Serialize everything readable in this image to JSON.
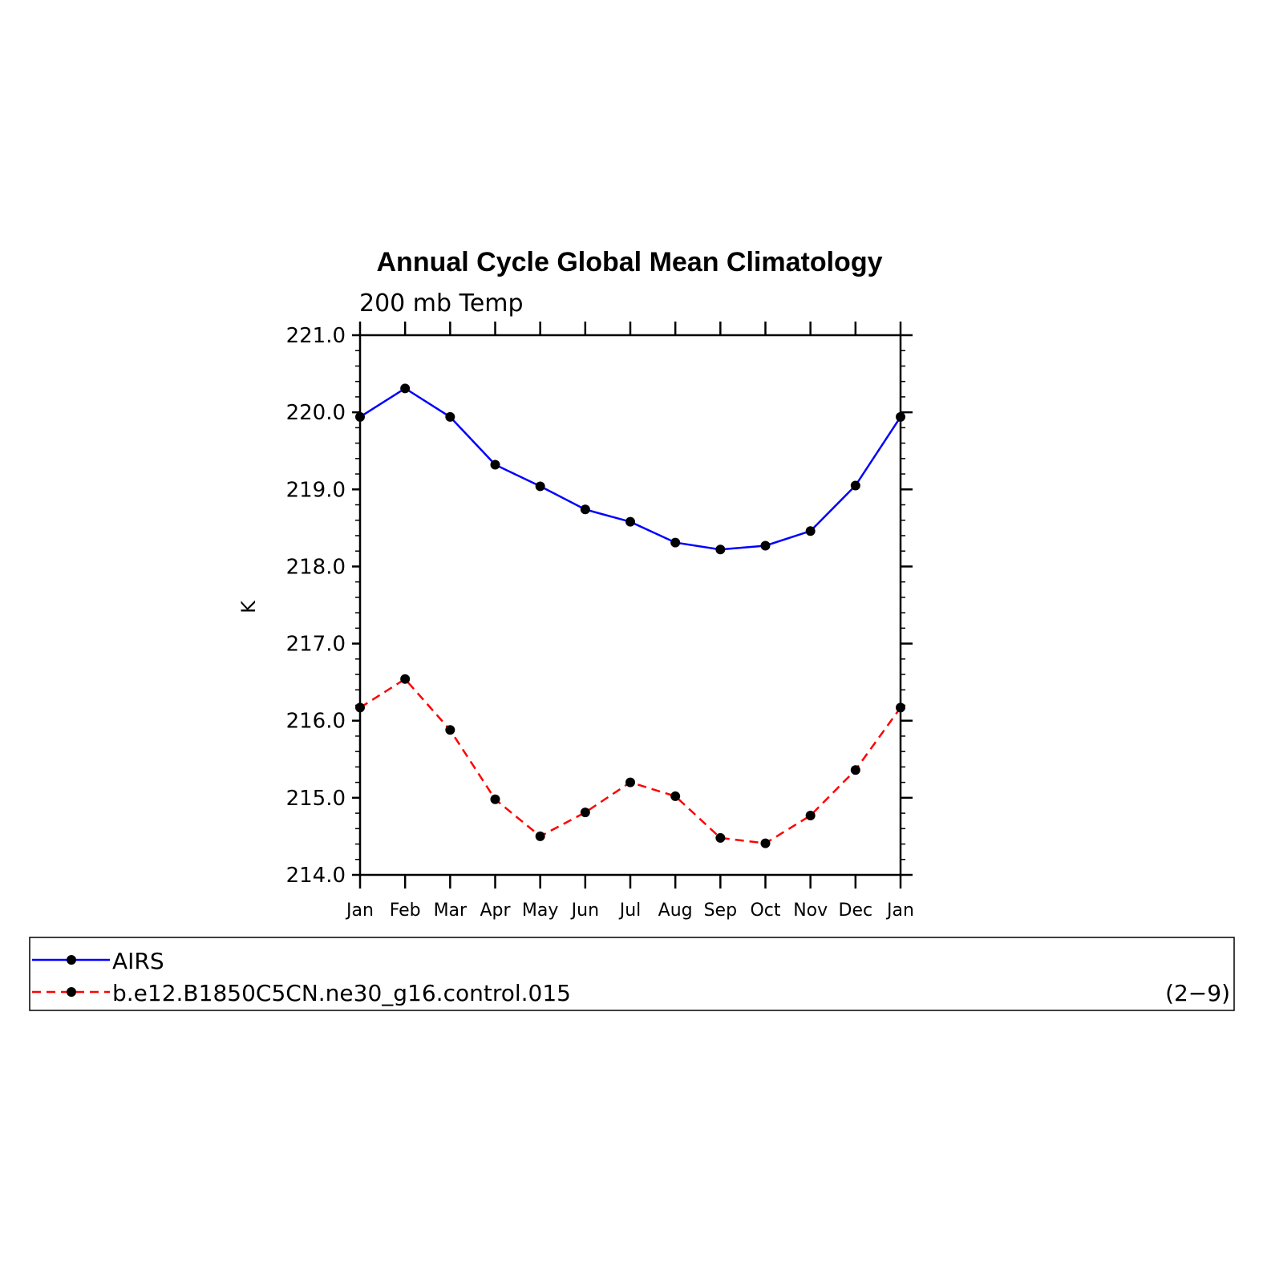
{
  "chart_data": {
    "type": "line",
    "title": "Annual Cycle Global Mean Climatology",
    "subtitle": "200 mb Temp",
    "ylabel": "K",
    "xlabel": "",
    "categories": [
      "Jan",
      "Feb",
      "Mar",
      "Apr",
      "May",
      "Jun",
      "Jul",
      "Aug",
      "Sep",
      "Oct",
      "Nov",
      "Dec",
      "Jan"
    ],
    "ylim": [
      214.0,
      221.0
    ],
    "yticks": [
      "214.0",
      "215.0",
      "216.0",
      "217.0",
      "218.0",
      "219.0",
      "220.0",
      "221.0"
    ],
    "grid": false,
    "legend_position": "bottom",
    "series": [
      {
        "name": "AIRS",
        "color": "#0000ff",
        "dash": "solid",
        "values": [
          219.94,
          220.31,
          219.94,
          219.32,
          219.04,
          218.74,
          218.58,
          218.31,
          218.22,
          218.27,
          218.46,
          219.05,
          219.94
        ]
      },
      {
        "name": "b.e12.B1850C5CN.ne30_g16.control.015",
        "color": "#ff0000",
        "dash": "dashed",
        "values": [
          216.17,
          216.54,
          215.88,
          214.98,
          214.5,
          214.81,
          215.2,
          215.02,
          214.48,
          214.41,
          214.77,
          215.36,
          216.17
        ]
      }
    ],
    "annotation": "(2−9)"
  }
}
